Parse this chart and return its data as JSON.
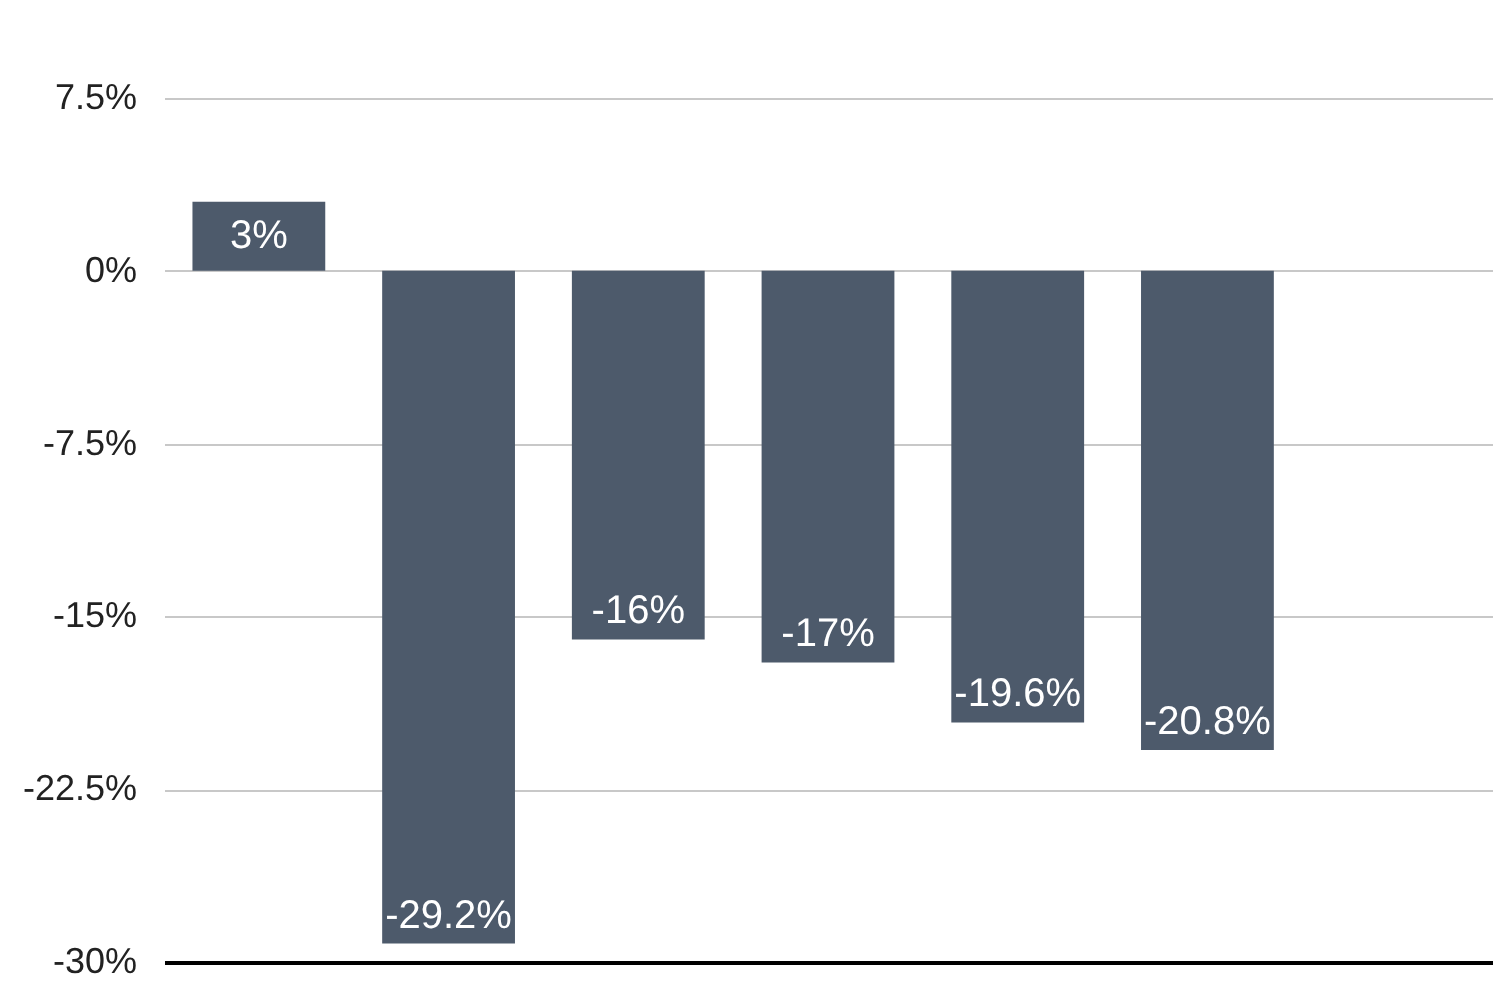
{
  "chart_data": {
    "type": "bar",
    "categories": [
      null,
      null,
      null,
      null,
      null,
      null,
      null
    ],
    "values": [
      3,
      -29.2,
      -16,
      -17,
      -19.6,
      -20.8,
      null
    ],
    "value_labels": [
      "3%",
      "-29.2%",
      "-16%",
      "-17%",
      "-19.6%",
      "-20.8%",
      null
    ],
    "color": "#4d5a6b",
    "ylim": [
      -30,
      7.5
    ],
    "yticks": [
      {
        "value": 7.5,
        "label": "7.5%"
      },
      {
        "value": 0,
        "label": "0%"
      },
      {
        "value": -7.5,
        "label": "-7.5%"
      },
      {
        "value": -15,
        "label": "-15%"
      },
      {
        "value": -22.5,
        "label": "-22.5%"
      },
      {
        "value": -30,
        "label": "-30%"
      }
    ],
    "grid": "y"
  }
}
